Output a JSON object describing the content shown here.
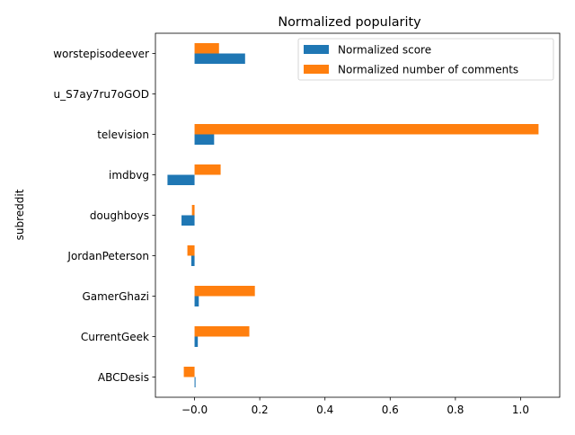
{
  "chart_data": {
    "type": "bar",
    "orientation": "horizontal",
    "title": "Normalized popularity",
    "xlabel": "",
    "ylabel": "subreddit",
    "categories": [
      "ABCDesis",
      "CurrentGeek",
      "GamerGhazi",
      "JordanPeterson",
      "doughboys",
      "imdbvg",
      "television",
      "u_S7ay7ru7oGOD",
      "worstepisodeever"
    ],
    "xlim": [
      -0.12,
      1.12
    ],
    "xticks": [
      -0.0,
      0.2,
      0.4,
      0.6,
      0.8,
      1.0
    ],
    "xtick_labels": [
      "−0.0",
      "0.2",
      "0.4",
      "0.6",
      "0.8",
      "1.0"
    ],
    "legend_position": "top-right",
    "grid": false,
    "series": [
      {
        "name": "Normalized score",
        "color": "#1f77b4",
        "values": [
          0.003,
          0.01,
          0.013,
          -0.01,
          -0.04,
          -0.083,
          0.06,
          0.0,
          0.155
        ]
      },
      {
        "name": "Normalized number of comments",
        "color": "#ff7f0e",
        "values": [
          -0.033,
          0.168,
          0.185,
          -0.022,
          -0.008,
          0.08,
          1.055,
          0.0,
          0.075
        ]
      }
    ]
  }
}
